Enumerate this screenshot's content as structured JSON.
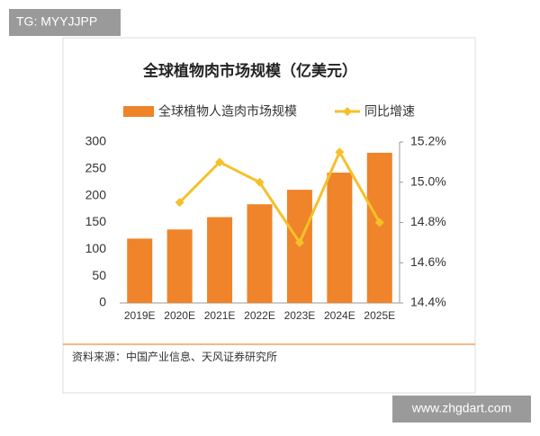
{
  "watermarks": [
    "TG: MYYJJPP",
    "www.zhgdart.com"
  ],
  "chart_data": {
    "type": "bar",
    "title": "全球植物肉市场规模（亿美元）",
    "categories": [
      "2019E",
      "2020E",
      "2021E",
      "2022E",
      "2023E",
      "2024E",
      "2025E"
    ],
    "series": [
      {
        "name": "全球植物人造肉市场规模",
        "type": "bar",
        "color": "#f0842a",
        "values": [
          120,
          137,
          160,
          184,
          211,
          243,
          280
        ]
      },
      {
        "name": "同比增速",
        "type": "line",
        "axis": "y2",
        "color": "#f6c02a",
        "values": [
          null,
          14.9,
          15.1,
          15.0,
          14.7,
          15.15,
          14.8
        ]
      }
    ],
    "ylim": [
      0,
      300
    ],
    "yticks": [
      0,
      50,
      100,
      150,
      200,
      250,
      300
    ],
    "y2lim": [
      14.4,
      15.2
    ],
    "y2ticks": [
      {
        "value": 14.4,
        "label": "14.4%"
      },
      {
        "value": 14.6,
        "label": "14.6%"
      },
      {
        "value": 14.8,
        "label": "14.8%"
      },
      {
        "value": 15.0,
        "label": "15.0%"
      },
      {
        "value": 15.2,
        "label": "15.2%"
      }
    ],
    "source": "资料来源：中国产业信息、天风证券研究所"
  }
}
